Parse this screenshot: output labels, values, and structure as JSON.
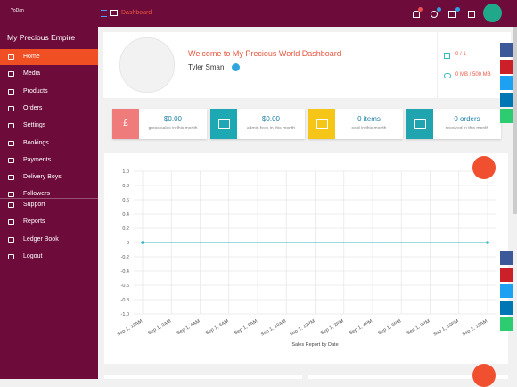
{
  "topbar": {
    "brand": "YoDan",
    "breadcrumb": "Dashboard"
  },
  "sidebar": {
    "title": "My Precious Empire",
    "menu": [
      "Home",
      "Media",
      "Products",
      "Orders",
      "Settings",
      "Bookings",
      "Payments",
      "Delivery Boys",
      "Followers"
    ],
    "menu_bottom": [
      "Support",
      "Reports",
      "Ledger Book",
      "Logout"
    ]
  },
  "welcome": {
    "title": "Welcome to My Precious World Dashboard",
    "user": "Tyler Sman",
    "stats": [
      "0 / 1",
      "0 MB / 500 MB"
    ]
  },
  "cards": [
    {
      "icon": "£",
      "value": "$0.00",
      "caption": "gross sales in this month"
    },
    {
      "value": "$0.00",
      "caption": "admin fees in this month"
    },
    {
      "value": "0 items",
      "caption": "sold in this month"
    },
    {
      "value": "0 orders",
      "caption": "received in this month"
    }
  ],
  "chart_data": {
    "type": "line",
    "xlabel": "Sales Report by Date",
    "categories": [
      "Sep 1, 12AM",
      "Sep 1, 2AM",
      "Sep 1, 4AM",
      "Sep 1, 6AM",
      "Sep 1, 8AM",
      "Sep 1, 10AM",
      "Sep 1, 12PM",
      "Sep 1, 2PM",
      "Sep 1, 4PM",
      "Sep 1, 6PM",
      "Sep 1, 8PM",
      "Sep 1, 10PM",
      "Sep 2, 12AM"
    ],
    "series": [
      {
        "color": "#3bb8c2",
        "values": [
          0,
          0,
          0,
          0,
          0,
          0,
          0,
          0,
          0,
          0,
          0,
          0,
          0
        ]
      }
    ],
    "ylim": [
      -1,
      1
    ],
    "yticks": [
      {
        "value": -1,
        "label": "-1.0"
      },
      -0.8,
      -0.6,
      -0.4,
      -0.2,
      0,
      0.2,
      0.4,
      0.6,
      0.8,
      {
        "value": 1,
        "label": "1.0"
      }
    ],
    "grid": true
  }
}
